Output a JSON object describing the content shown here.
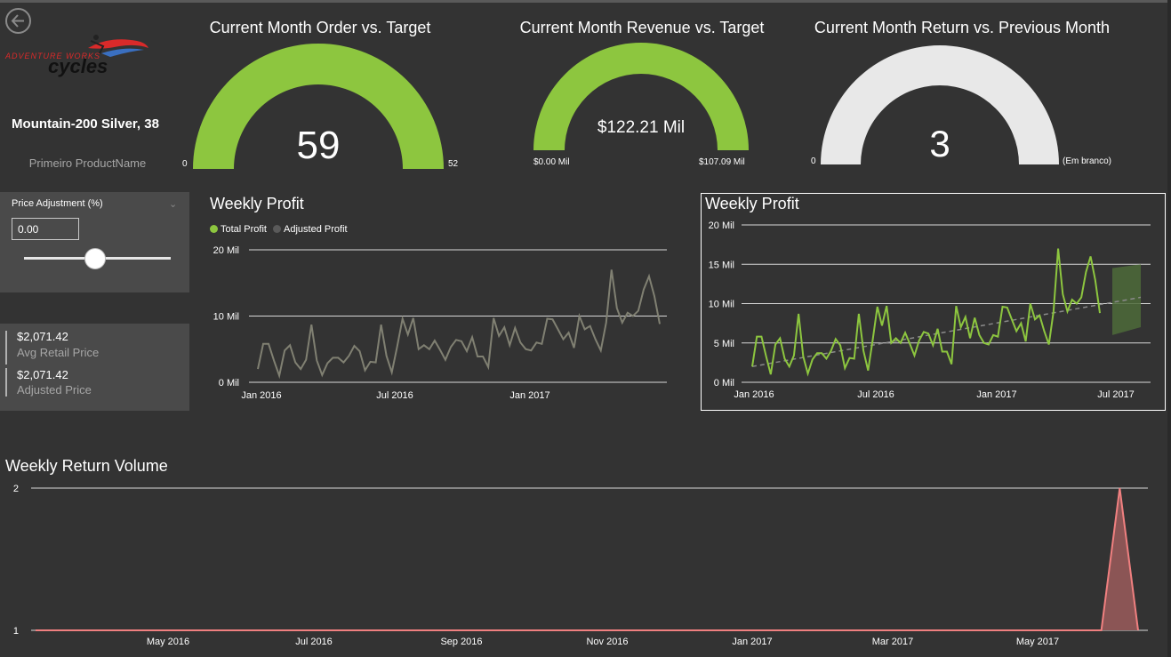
{
  "header": {
    "back_icon": "back-arrow-circle-icon",
    "logo_text_1": "ADVENTURE WORKS",
    "logo_text_2": "cycles"
  },
  "product": {
    "name": "Mountain-200 Silver, 38",
    "subtitle": "Primeiro ProductName"
  },
  "gauges": [
    {
      "title": "Current Month Order vs. Target",
      "value": "59",
      "min": "0",
      "max": "52",
      "fill": 1.0,
      "color": "#8dc63f"
    },
    {
      "title": "Current Month Revenue vs. Target",
      "value": "$122.21 Mil",
      "min": "$0.00 Mil",
      "max": "$107.09 Mil",
      "fill": 1.0,
      "color": "#8dc63f"
    },
    {
      "title": "Current Month Return vs. Previous Month",
      "value": "3",
      "min": "0",
      "max": "(Em branco)",
      "fill": 1.0,
      "color": "#e8e8e8"
    }
  ],
  "slicer": {
    "title": "Price Adjustment (%)",
    "value": "0.00",
    "slider_fraction": 0.5
  },
  "card": {
    "avg_retail_value": "$2,071.42",
    "avg_retail_label": "Avg Retail Price",
    "adjusted_value": "$2,071.42",
    "adjusted_label": "Adjusted Price"
  },
  "colors": {
    "background": "#333333",
    "green": "#8dc63f",
    "gray_series": "#808072",
    "forecast": "#4e6b3a",
    "return_line": "#f08080",
    "return_area": "#8b5555"
  },
  "chart_data": [
    {
      "type": "line",
      "title": "Weekly Profit",
      "legend": [
        "Total Profit",
        "Adjusted Profit"
      ],
      "legend_placement": "top-left",
      "y_ticks": [
        "0 Mil",
        "10 Mil",
        "20 Mil"
      ],
      "x_ticks": [
        "Jan 2016",
        "Jul 2016",
        "Jan 2017"
      ],
      "ylim": [
        0,
        20
      ],
      "series": [
        {
          "name": "Adjusted Profit",
          "values": [
            2,
            5.8,
            5.8,
            3.3,
            1,
            4.8,
            5.6,
            3,
            2,
            3.4,
            8.7,
            3.3,
            1.1,
            2.9,
            3.7,
            3.7,
            3,
            4,
            5.5,
            4.7,
            1.8,
            3.1,
            3,
            8.7,
            4,
            1.5,
            5.4,
            9.6,
            7.2,
            9.7,
            5,
            5.6,
            5,
            6.3,
            4.9,
            3.4,
            5.3,
            6.4,
            6.2,
            4.7,
            6.8,
            3.9,
            3.9,
            2.3,
            9.7,
            7,
            8.3,
            5.6,
            8.2,
            6,
            5,
            4.8,
            6,
            5.8,
            9.6,
            9.5,
            8,
            6.5,
            7.5,
            5.2,
            10,
            8,
            8.5,
            6.5,
            4.8,
            9,
            17,
            11.2,
            9,
            10.5,
            10,
            10.8,
            14,
            16,
            13,
            8.8
          ]
        }
      ]
    },
    {
      "type": "line",
      "title": "Weekly Profit",
      "y_ticks": [
        "0 Mil",
        "5 Mil",
        "10 Mil",
        "15 Mil",
        "20 Mil"
      ],
      "x_ticks": [
        "Jan 2016",
        "Jul 2016",
        "Jan 2017",
        "Jul 2017"
      ],
      "ylim": [
        0,
        20
      ],
      "series": [
        {
          "name": "Total Profit",
          "values": [
            2,
            5.8,
            5.8,
            3.3,
            1,
            4.8,
            5.6,
            3,
            2,
            3.4,
            8.7,
            3.3,
            1.1,
            2.9,
            3.7,
            3.7,
            3,
            4,
            5.5,
            4.7,
            1.8,
            3.1,
            3,
            8.7,
            4,
            1.5,
            5.4,
            9.6,
            7.2,
            9.7,
            5,
            5.6,
            5,
            6.3,
            4.9,
            3.4,
            5.3,
            6.4,
            6.2,
            4.7,
            6.8,
            3.9,
            3.9,
            2.3,
            9.7,
            7,
            8.3,
            5.6,
            8.2,
            6,
            5,
            4.8,
            6,
            5.8,
            9.6,
            9.5,
            8,
            6.5,
            7.5,
            5.2,
            10,
            8,
            8.5,
            6.5,
            4.8,
            9,
            17,
            11.2,
            9,
            10.5,
            10,
            10.8,
            14,
            16,
            13,
            8.8
          ]
        }
      ],
      "trend": [
        2,
        10.8
      ],
      "forecast": {
        "upper": [
          14.5,
          15
        ],
        "lower": [
          6,
          7
        ]
      }
    },
    {
      "type": "area",
      "title": "Weekly Return Volume",
      "y_ticks": [
        "1",
        "2"
      ],
      "x_ticks": [
        "May 2016",
        "Jul 2016",
        "Sep 2016",
        "Nov 2016",
        "Jan 2017",
        "Mar 2017",
        "May 2017"
      ],
      "ylim": [
        1,
        2
      ],
      "series": [
        {
          "name": "Returns",
          "values": [
            1,
            1,
            1,
            1,
            1,
            1,
            1,
            1,
            1,
            1,
            1,
            1,
            1,
            1,
            1,
            1,
            1,
            1,
            1,
            1,
            1,
            1,
            1,
            1,
            1,
            1,
            1,
            1,
            1,
            1,
            1,
            1,
            1,
            1,
            1,
            1,
            1,
            1,
            1,
            1,
            1,
            1,
            1,
            1,
            1,
            1,
            1,
            1,
            1,
            1,
            1,
            1,
            1,
            1,
            1,
            1,
            1,
            1,
            1,
            2,
            1
          ]
        }
      ]
    }
  ]
}
